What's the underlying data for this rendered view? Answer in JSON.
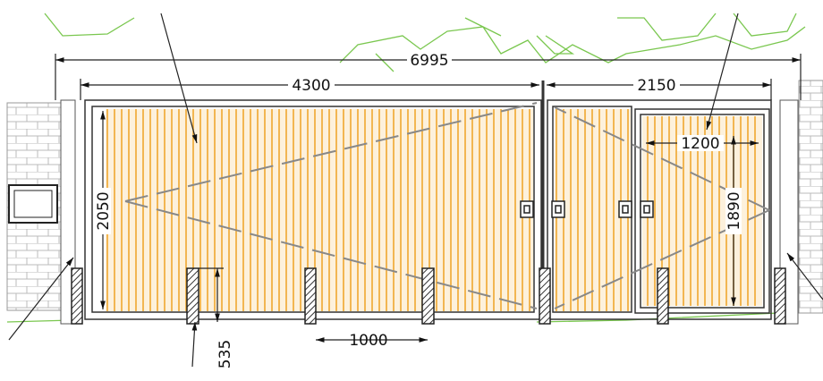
{
  "dimensions": {
    "overall_width": 6995,
    "sliding_gate_width": 4300,
    "side_gate_width": 2150,
    "gate_height": 2050,
    "door_width": 1200,
    "door_height": 1890,
    "post_spacing": 1000,
    "post_depth": 535
  }
}
